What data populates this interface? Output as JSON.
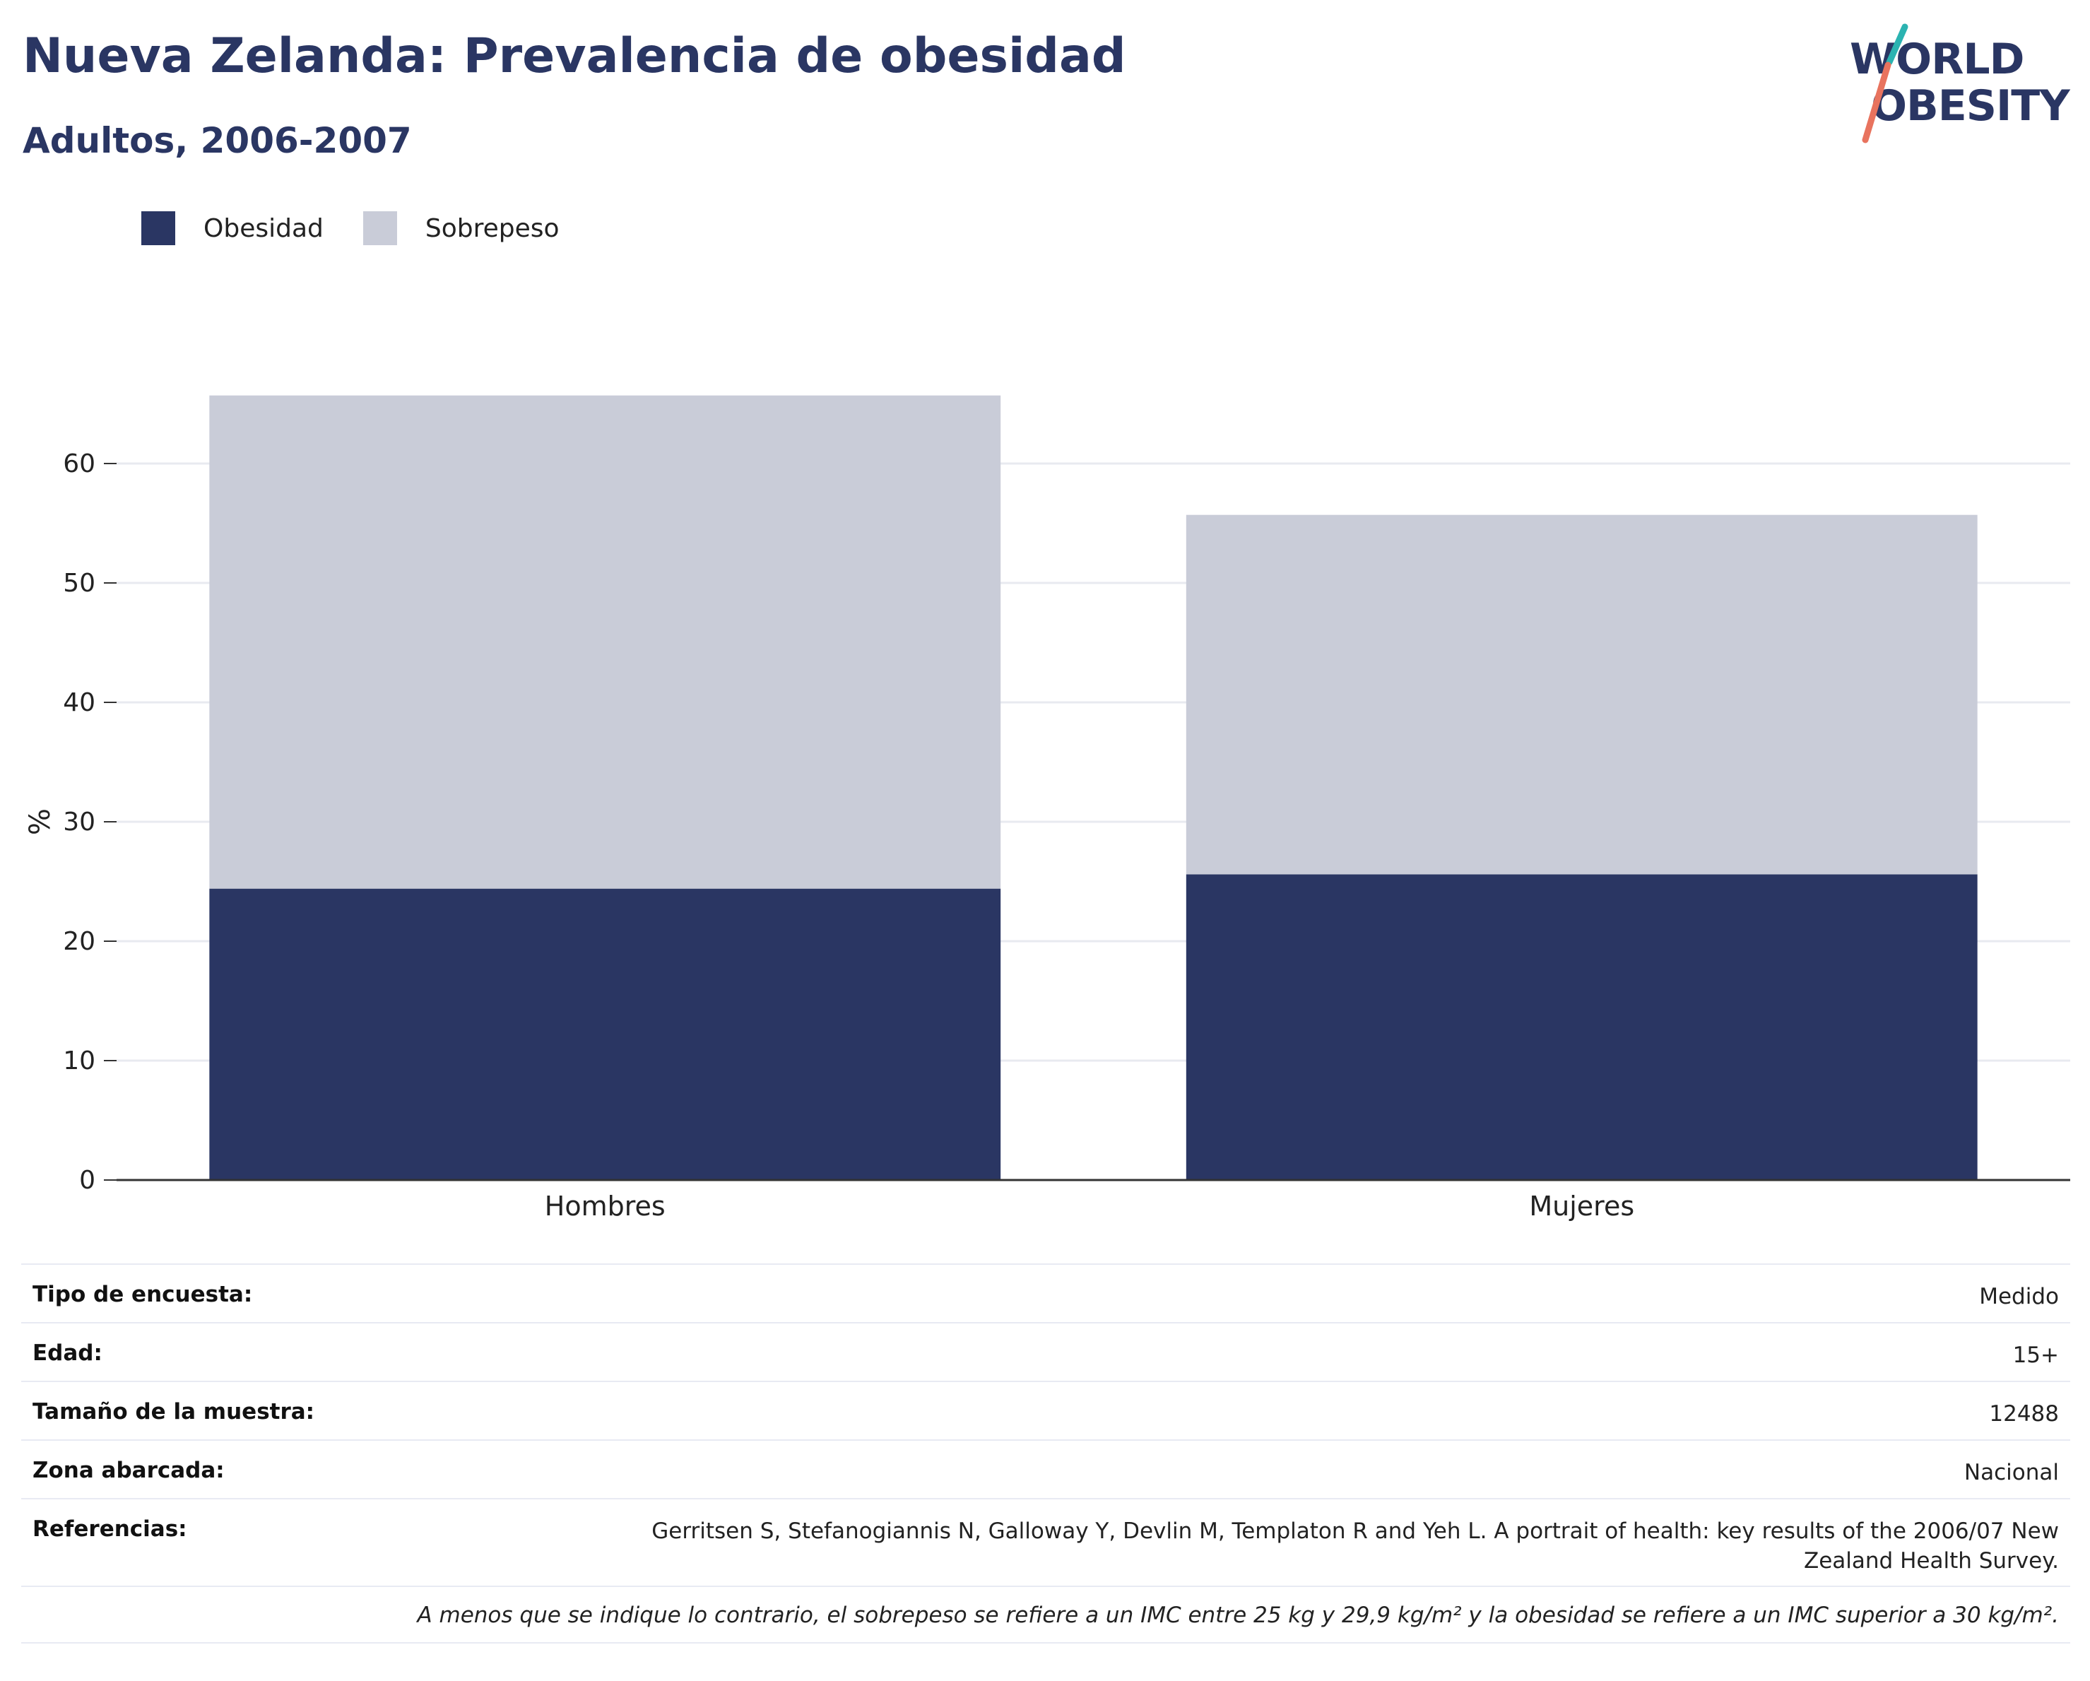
{
  "header": {
    "title": "Nueva Zelanda: Prevalencia de obesidad",
    "subtitle": "Adultos, 2006-2007"
  },
  "logo": {
    "line1": "WORLD",
    "line2": "OBESITY",
    "colors": {
      "text": "#2a3663",
      "accent_teal": "#2bb3b1",
      "accent_coral": "#e8735e"
    }
  },
  "colors": {
    "obesidad": "#2a3663",
    "sobrepeso": "#c9ccd8",
    "grid": "#e8eaf0",
    "axis": "#333333"
  },
  "chart_data": {
    "type": "bar",
    "stacked": true,
    "categories": [
      "Hombres",
      "Mujeres"
    ],
    "series": [
      {
        "name": "Obesidad",
        "values": [
          24.4,
          25.6
        ]
      },
      {
        "name": "Sobrepeso",
        "values": [
          41.3,
          30.1
        ]
      }
    ],
    "title": "Nueva Zelanda: Prevalencia de obesidad",
    "subtitle": "Adultos, 2006-2007",
    "xlabel": "",
    "ylabel": "%",
    "yticks": [
      0,
      10,
      20,
      30,
      40,
      50,
      60
    ],
    "ylim": [
      0,
      70
    ],
    "grid": true,
    "legend_position": "top-left"
  },
  "info": [
    {
      "key": "Tipo de encuesta:",
      "value": "Medido"
    },
    {
      "key": "Edad:",
      "value": "15+"
    },
    {
      "key": "Tamaño de la muestra:",
      "value": "12488"
    },
    {
      "key": "Zona abarcada:",
      "value": "Nacional"
    },
    {
      "key": "Referencias:",
      "value": "Gerritsen S, Stefanogiannis N, Galloway Y, Devlin M, Templaton R and Yeh L. A portrait of health: key results of the 2006/07 New Zealand Health Survey."
    }
  ],
  "footnote": "A menos que se indique lo contrario, el sobrepeso se refiere a un IMC entre 25 kg y 29,9 kg/m² y la obesidad se refiere a un IMC superior a 30 kg/m²."
}
